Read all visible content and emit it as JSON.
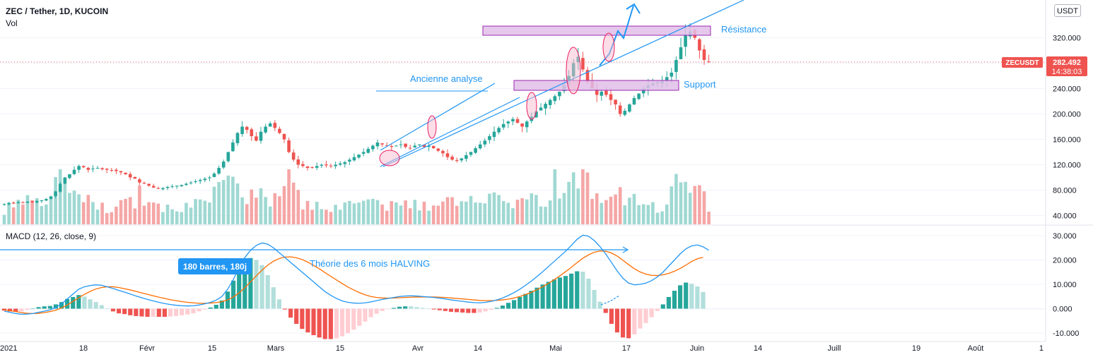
{
  "header": {
    "title": "ZEC / Tether, 1D, KUCOIN",
    "volume_label": "Vol",
    "macd_label": "MACD (12, 26, close, 9)"
  },
  "currency_button": "USDT",
  "price_badge": {
    "symbol": "ZECUSDT",
    "price": "282.492",
    "countdown": "14:38:03"
  },
  "annotations": {
    "resistance": "Résistance",
    "support": "Support",
    "old_analysis": "Ancienne analyse",
    "halving_theory": "Théorie des 6 mois HALVING",
    "bars_tooltip": "180 barres, 180j"
  },
  "colors": {
    "up": "#26a69a",
    "down": "#ef5350",
    "up_volume": "#9fd8d2",
    "down_volume": "#f5a6a6",
    "macd_line": "#2196f3",
    "signal_line": "#ff6d00",
    "hist_up_strong": "#26a69a",
    "hist_up_weak": "#b2dfdb",
    "hist_down_strong": "#ef5350",
    "hist_down_weak": "#ffcdd2",
    "drawing": "#2196f3",
    "zone_fill": "#e1bee7",
    "zone_border": "#9c27b0"
  },
  "chart_data": {
    "type": "candlestick",
    "x_axis_ticks": [
      "2021",
      "18",
      "Févr",
      "15",
      "Mars",
      "15",
      "Avr",
      "14",
      "Mai",
      "17",
      "Juin",
      "14",
      "Juill",
      "19",
      "Août",
      "1"
    ],
    "price_axis": {
      "ticks": [
        "320.000",
        "280.000",
        "240.000",
        "200.000",
        "160.000",
        "120.000",
        "80.000",
        "40.000"
      ],
      "range": [
        30,
        360
      ]
    },
    "macd_axis": {
      "ticks": [
        "30.000",
        "20.000",
        "10.000",
        "0.000",
        "-10.000"
      ],
      "range": [
        -12,
        33
      ]
    },
    "closes": [
      58,
      60,
      59,
      61,
      60,
      62,
      61,
      63,
      64,
      66,
      70,
      78,
      90,
      100,
      105,
      112,
      118,
      116,
      112,
      114,
      115,
      113,
      112,
      111,
      110,
      108,
      105,
      100,
      98,
      92,
      90,
      87,
      84,
      82,
      83,
      85,
      86,
      87,
      88,
      90,
      92,
      94,
      96,
      98,
      100,
      106,
      115,
      125,
      140,
      155,
      170,
      180,
      175,
      165,
      158,
      172,
      180,
      185,
      178,
      170,
      160,
      140,
      128,
      120,
      118,
      115,
      116,
      118,
      120,
      119,
      118,
      120,
      122,
      124,
      128,
      132,
      136,
      140,
      145,
      150,
      155,
      152,
      150,
      148,
      150,
      152,
      148,
      146,
      150,
      152,
      148,
      150,
      146,
      142,
      138,
      132,
      128,
      126,
      130,
      135,
      140,
      146,
      152,
      158,
      165,
      172,
      178,
      184,
      188,
      192,
      186,
      180,
      188,
      196,
      204,
      210,
      216,
      222,
      228,
      235,
      245,
      260,
      280,
      290,
      270,
      250,
      240,
      230,
      235,
      230,
      222,
      215,
      200,
      205,
      215,
      225,
      232,
      240,
      245,
      248,
      250,
      252,
      258,
      265,
      285,
      305,
      325,
      330,
      320,
      300,
      285,
      282.492
    ],
    "volume_data_units": "scaled 0-100",
    "macd_line_values": [
      -1,
      -1.5,
      -2,
      -2.3,
      -2.2,
      -2,
      -1.5,
      -1,
      -0.5,
      0.5,
      2,
      4,
      6,
      8,
      9,
      9.5,
      9.8,
      9.6,
      9,
      8.3,
      7.5,
      6.8,
      6,
      5.2,
      4.5,
      3.8,
      3.2,
      2.6,
      2.1,
      1.7,
      1.4,
      1.2,
      1.1,
      1.2,
      1.5,
      2,
      2.6,
      3.5,
      5,
      8,
      12,
      17,
      21,
      24,
      26,
      27,
      26.5,
      25,
      23,
      21,
      19,
      17,
      15,
      13,
      11,
      9,
      7,
      5.5,
      4.2,
      3.2,
      2.6,
      2.3,
      2.2,
      2.4,
      2.8,
      3.3,
      3.8,
      4.2,
      4.6,
      5,
      5.2,
      5.3,
      5.2,
      5,
      4.8,
      4.6,
      4.3,
      4,
      3.6,
      3.3,
      3,
      2.7,
      2.5,
      2.4,
      2.6,
      3,
      3.6,
      4.4,
      5.4,
      6.6,
      8,
      9.6,
      11.3,
      13.2,
      15.2,
      17.3,
      19.4,
      21.5,
      23.6,
      26,
      28.5,
      30.2,
      29.8,
      28,
      25.5,
      22.5,
      19,
      15.5,
      12.5,
      10.5,
      9.8,
      10,
      10.5,
      11.5,
      13,
      15,
      17.5,
      20,
      22.5,
      24.6,
      25.8,
      26.2,
      25.4,
      24
    ],
    "signal_line_values": [
      -0.5,
      -0.8,
      -1.2,
      -1.6,
      -1.9,
      -2,
      -1.9,
      -1.6,
      -1.2,
      -0.6,
      0.3,
      1.5,
      3,
      4.5,
      5.9,
      7.1,
      8.1,
      8.7,
      9,
      9,
      8.7,
      8.2,
      7.7,
      7.1,
      6.5,
      5.9,
      5.3,
      4.7,
      4.2,
      3.7,
      3.3,
      2.9,
      2.6,
      2.4,
      2.2,
      2.2,
      2.3,
      2.5,
      2.9,
      3.6,
      4.8,
      6.5,
      8.6,
      11,
      13.5,
      15.8,
      17.9,
      19.5,
      20.6,
      21.2,
      21.3,
      20.9,
      20.2,
      19.1,
      17.8,
      16.4,
      14.8,
      13.3,
      11.8,
      10.3,
      8.9,
      7.7,
      6.6,
      5.7,
      5,
      4.6,
      4.4,
      4.3,
      4.4,
      4.5,
      4.6,
      4.7,
      4.8,
      4.8,
      4.8,
      4.8,
      4.7,
      4.6,
      4.4,
      4.2,
      4,
      3.8,
      3.6,
      3.4,
      3.3,
      3.3,
      3.4,
      3.6,
      3.9,
      4.4,
      5,
      5.8,
      6.7,
      7.8,
      9,
      10.4,
      11.9,
      13.5,
      15.2,
      17,
      18.9,
      20.7,
      22.1,
      23.2,
      23.7,
      23.6,
      22.9,
      21.6,
      19.9,
      18.1,
      16.4,
      15.1,
      14.2,
      13.7,
      13.6,
      13.9,
      14.5,
      15.4,
      16.5,
      17.9,
      19.4,
      20.5,
      21.1
    ]
  }
}
